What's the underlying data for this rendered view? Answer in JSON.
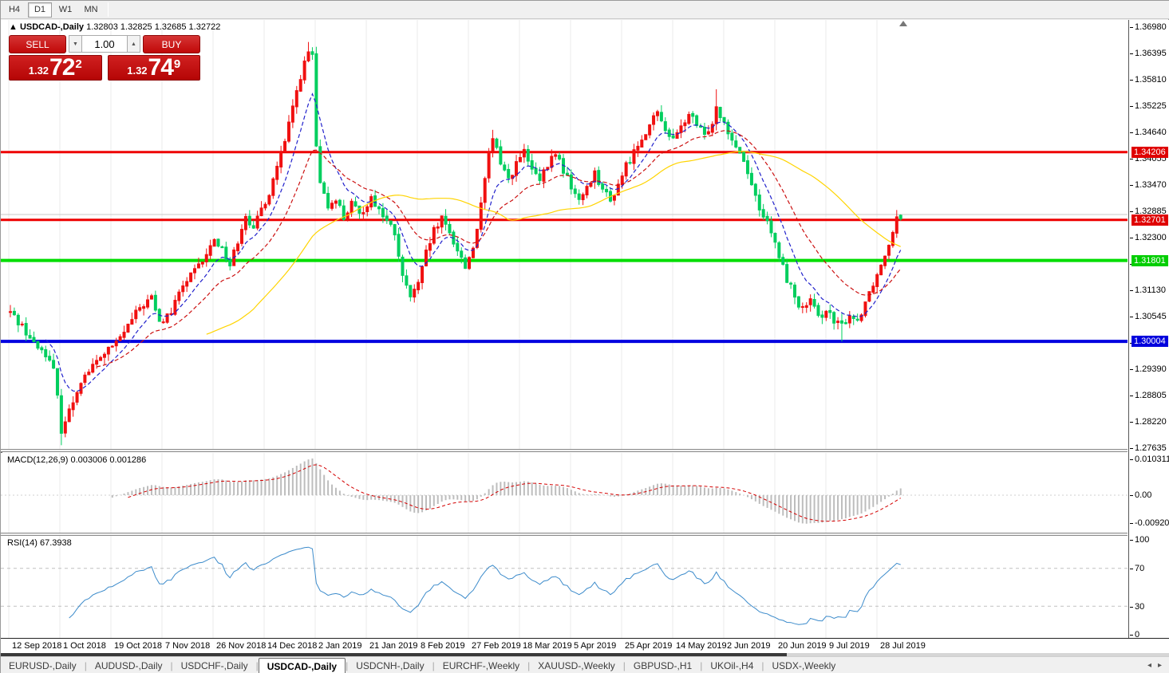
{
  "toolbar": {
    "timeframes": [
      "H4",
      "D1",
      "W1",
      "MN"
    ],
    "active_timeframe": "D1"
  },
  "window": {
    "collapse_marker": "▲",
    "symbol_title": "USDCAD-,Daily",
    "ohlc_text": "1.32803 1.32825 1.32685 1.32722"
  },
  "trade_panel": {
    "sell_label": "SELL",
    "buy_label": "BUY",
    "volume": "1.00",
    "spin_down": "▼",
    "spin_up": "▲",
    "sell_price": {
      "prefix": "1.32",
      "big": "72",
      "sup": "2"
    },
    "buy_price": {
      "prefix": "1.32",
      "big": "74",
      "sup": "9"
    }
  },
  "price_axis": {
    "labels": [
      "1.36980",
      "1.36395",
      "1.35810",
      "1.35225",
      "1.34640",
      "1.34055",
      "1.33470",
      "1.32885",
      "1.32300",
      "1.31715",
      "1.31130",
      "1.30545",
      "1.29970",
      "1.29390",
      "1.28805",
      "1.28220",
      "1.27635"
    ],
    "top_price": 1.3698,
    "step": 0.005840625,
    "tags": [
      {
        "text": "1.34206",
        "price": 1.34206,
        "color": "#df0000"
      },
      {
        "text": "1.32701",
        "price": 1.32701,
        "color": "#df0000"
      },
      {
        "text": "1.31801",
        "price": 1.31801,
        "color": "#00ce00"
      },
      {
        "text": "1.30004",
        "price": 1.30004,
        "color": "#0000dd"
      }
    ]
  },
  "macd_panel": {
    "label": "MACD(12,26,9) 0.003006 0.001286",
    "axis_labels": [
      "0.010311",
      "0.00",
      "-0.009203"
    ],
    "last_main": 0.003006,
    "last_signal": 0.001286
  },
  "rsi_panel": {
    "label": "RSI(14) 67.3938",
    "axis_labels": [
      "100",
      "70",
      "30",
      "0"
    ],
    "levels": [
      70,
      30
    ],
    "last_value": 67.3938
  },
  "date_axis": [
    "12 Sep 2018",
    "1 Oct 2018",
    "19 Oct 2018",
    "7 Nov 2018",
    "26 Nov 2018",
    "14 Dec 2018",
    "2 Jan 2019",
    "21 Jan 2019",
    "8 Feb 2019",
    "27 Feb 2019",
    "18 Mar 2019",
    "5 Apr 2019",
    "25 Apr 2019",
    "14 May 2019",
    "2 Jun 2019",
    "20 Jun 2019",
    "9 Jul 2019",
    "28 Jul 2019"
  ],
  "tabs": {
    "items": [
      "EURUSD-,Daily",
      "AUDUSD-,Daily",
      "USDCHF-,Daily",
      "USDCAD-,Daily",
      "USDCNH-,Daily",
      "EURCHF-,Weekly",
      "XAUUSD-,Weekly",
      "GBPUSD-,H1",
      "UKOil-,H4",
      "USDX-,Weekly"
    ],
    "active": "USDCAD-,Daily",
    "arrows": [
      "◂",
      "▸"
    ]
  },
  "chart_data": {
    "type": "candlestick",
    "symbol": "USDCAD",
    "timeframe": "Daily",
    "title": "USDCAD-,Daily",
    "ylim": [
      1.27635,
      1.3698
    ],
    "x_range": [
      "12 Sep 2018",
      "8 Aug 2019"
    ],
    "candle_count": 228,
    "colors": {
      "up": "#f01010",
      "down": "#00ce5e",
      "ma_fast": "#2222cc",
      "ma_mid": "#cc1111",
      "ma_slow": "#ffd400",
      "macd_bar": "#c0c0c0",
      "macd_signal": "#d40000",
      "rsi_line": "#3c8bcb"
    },
    "horizontal_lines": [
      {
        "price": 1.34206,
        "color": "#ee0000",
        "width": 3
      },
      {
        "price": 1.32821,
        "color": "#c8c8c8",
        "width": 1
      },
      {
        "price": 1.32701,
        "color": "#ee0000",
        "width": 3
      },
      {
        "price": 1.31801,
        "color": "#00dd00",
        "width": 4
      },
      {
        "price": 1.30004,
        "color": "#0000e0",
        "width": 4
      }
    ],
    "moving_averages": [
      {
        "type": "ema",
        "period": 9,
        "style": "dashed",
        "color": "#2222cc"
      },
      {
        "type": "ema",
        "period": 22,
        "style": "dashed",
        "color": "#cc1111"
      },
      {
        "type": "sma",
        "period": 50,
        "style": "solid",
        "color": "#ffd400"
      }
    ],
    "price_path_anchors": [
      [
        0,
        1.3065
      ],
      [
        3,
        1.3035
      ],
      [
        6,
        1.2995
      ],
      [
        9,
        1.2975
      ],
      [
        11,
        1.2935
      ],
      [
        12,
        1.2875
      ],
      [
        13,
        1.2805
      ],
      [
        15,
        1.2845
      ],
      [
        18,
        1.2915
      ],
      [
        21,
        1.2945
      ],
      [
        24,
        1.2975
      ],
      [
        27,
        1.2995
      ],
      [
        30,
        1.3035
      ],
      [
        33,
        1.3075
      ],
      [
        36,
        1.3098
      ],
      [
        38,
        1.304
      ],
      [
        41,
        1.3065
      ],
      [
        44,
        1.3125
      ],
      [
        47,
        1.3155
      ],
      [
        50,
        1.319
      ],
      [
        52,
        1.323
      ],
      [
        54,
        1.3205
      ],
      [
        56,
        1.317
      ],
      [
        58,
        1.3225
      ],
      [
        60,
        1.3285
      ],
      [
        62,
        1.3245
      ],
      [
        64,
        1.3295
      ],
      [
        66,
        1.333
      ],
      [
        68,
        1.339
      ],
      [
        70,
        1.344
      ],
      [
        72,
        1.352
      ],
      [
        74,
        1.359
      ],
      [
        76,
        1.364
      ],
      [
        77,
        1.3635
      ],
      [
        78,
        1.343
      ],
      [
        79,
        1.3345
      ],
      [
        81,
        1.33
      ],
      [
        83,
        1.332
      ],
      [
        85,
        1.3275
      ],
      [
        87,
        1.3305
      ],
      [
        89,
        1.328
      ],
      [
        92,
        1.332
      ],
      [
        95,
        1.328
      ],
      [
        98,
        1.324
      ],
      [
        100,
        1.314
      ],
      [
        102,
        1.31
      ],
      [
        104,
        1.3125
      ],
      [
        106,
        1.3195
      ],
      [
        108,
        1.3245
      ],
      [
        110,
        1.327
      ],
      [
        112,
        1.324
      ],
      [
        114,
        1.3205
      ],
      [
        116,
        1.3165
      ],
      [
        118,
        1.321
      ],
      [
        120,
        1.33
      ],
      [
        122,
        1.3415
      ],
      [
        123,
        1.345
      ],
      [
        125,
        1.34
      ],
      [
        127,
        1.336
      ],
      [
        129,
        1.3395
      ],
      [
        131,
        1.342
      ],
      [
        133,
        1.338
      ],
      [
        135,
        1.3355
      ],
      [
        137,
        1.339
      ],
      [
        139,
        1.342
      ],
      [
        141,
        1.338
      ],
      [
        143,
        1.3345
      ],
      [
        145,
        1.331
      ],
      [
        147,
        1.3345
      ],
      [
        149,
        1.3375
      ],
      [
        151,
        1.334
      ],
      [
        153,
        1.331
      ],
      [
        155,
        1.335
      ],
      [
        157,
        1.339
      ],
      [
        159,
        1.342
      ],
      [
        161,
        1.3455
      ],
      [
        163,
        1.348
      ],
      [
        165,
        1.3505
      ],
      [
        167,
        1.3475
      ],
      [
        169,
        1.3445
      ],
      [
        171,
        1.3475
      ],
      [
        173,
        1.3505
      ],
      [
        175,
        1.348
      ],
      [
        177,
        1.3455
      ],
      [
        179,
        1.349
      ],
      [
        180,
        1.352
      ],
      [
        182,
        1.349
      ],
      [
        184,
        1.345
      ],
      [
        186,
        1.342
      ],
      [
        188,
        1.338
      ],
      [
        190,
        1.332
      ],
      [
        192,
        1.328
      ],
      [
        194,
        1.324
      ],
      [
        196,
        1.319
      ],
      [
        198,
        1.314
      ],
      [
        200,
        1.31
      ],
      [
        202,
        1.307
      ],
      [
        204,
        1.309
      ],
      [
        206,
        1.305
      ],
      [
        208,
        1.3075
      ],
      [
        210,
        1.304
      ],
      [
        212,
        1.3035
      ],
      [
        214,
        1.306
      ],
      [
        216,
        1.3045
      ],
      [
        218,
        1.309
      ],
      [
        220,
        1.313
      ],
      [
        222,
        1.317
      ],
      [
        224,
        1.322
      ],
      [
        226,
        1.328
      ],
      [
        227,
        1.32722
      ]
    ],
    "wick_overrides": {
      "13": {
        "low": 1.277
      },
      "76": {
        "high": 1.3665
      },
      "123": {
        "high": 1.347
      },
      "180": {
        "high": 1.356
      },
      "212": {
        "low": 1.3
      },
      "226": {
        "high": 1.3292
      }
    },
    "last_candle": {
      "open": 1.32803,
      "high": 1.32825,
      "low": 1.32685,
      "close": 1.32722
    }
  }
}
